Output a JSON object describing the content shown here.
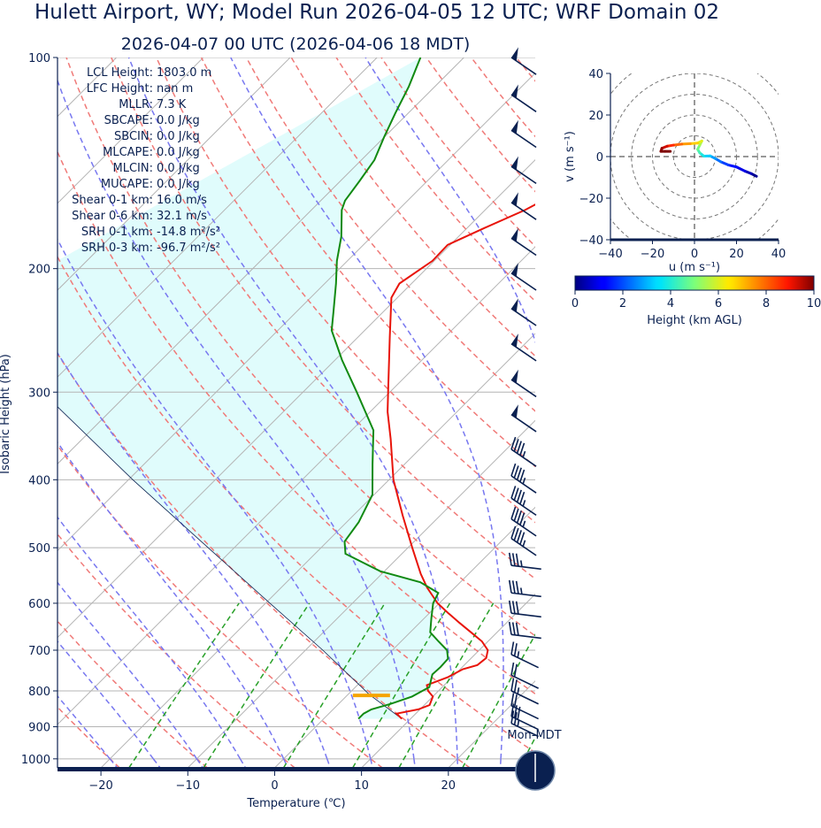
{
  "title": "Hulett Airport, WY; Model Run 2026-04-05 12 UTC; WRF Domain 02",
  "subtitle": "2026-04-07 00 UTC  (2026-04-06 18 MDT)",
  "stats": [
    {
      "label": "LCL Height:",
      "value": "1803.0 m"
    },
    {
      "label": "LFC Height:",
      "value": "nan m"
    },
    {
      "label": "MLLR:",
      "value": "7.3 K"
    },
    {
      "label": "SBCAPE:",
      "value": "0.0 J/kg"
    },
    {
      "label": "SBCIN:",
      "value": "0.0 J/kg"
    },
    {
      "label": "MLCAPE:",
      "value": "0.0 J/kg"
    },
    {
      "label": "MLCIN:",
      "value": "0.0 J/kg"
    },
    {
      "label": "MUCAPE:",
      "value": "0.0 J/kg"
    },
    {
      "label": "Shear 0-1 km:",
      "value": "16.0 m/s"
    },
    {
      "label": "Shear 0-6 km:",
      "value": "32.1 m/s"
    },
    {
      "label": "SRH 0-1 km:",
      "value": "-14.8 m²/s²"
    },
    {
      "label": "SRH 0-3 km:",
      "value": "-96.7 m²/s²"
    }
  ],
  "clock_label": "Mon-MDT",
  "colors": {
    "temperature": "#e8140a",
    "dewpoint": "#128a12",
    "dry_adiabat": "#f07a78",
    "moist_adiabat": "#7878f0",
    "mixing_ratio": "#28a028",
    "parcel_fill": "#e0fcfc",
    "lcl_marker": "#f5a400",
    "frame": "#0a2050"
  },
  "chart_data": [
    {
      "type": "line",
      "kind": "skew-t log-p",
      "xlabel": "Temperature (℃)",
      "ylabel": "Isobaric Height (hPa)",
      "xlim": [
        -25,
        30
      ],
      "ylim": [
        1030,
        100
      ],
      "x_ticks": [
        -20,
        -10,
        0,
        10,
        20
      ],
      "y_ticks": [
        100,
        200,
        300,
        400,
        500,
        600,
        700,
        800,
        900,
        1000
      ],
      "grid": true,
      "series": [
        {
          "role": "temperature",
          "points": [
            [
              877,
              9.0
            ],
            [
              862,
              7.8
            ],
            [
              850,
              9.8
            ],
            [
              838,
              10.6
            ],
            [
              815,
              10.0
            ],
            [
              800,
              8.8
            ],
            [
              785,
              8.0
            ],
            [
              765,
              9.5
            ],
            [
              745,
              10.3
            ],
            [
              735,
              11.5
            ],
            [
              718,
              11.7
            ],
            [
              700,
              11.0
            ],
            [
              680,
              9.3
            ],
            [
              660,
              7.0
            ],
            [
              640,
              4.6
            ],
            [
              620,
              2.2
            ],
            [
              600,
              -0.2
            ],
            [
              570,
              -3.2
            ],
            [
              545,
              -5.5
            ],
            [
              500,
              -9.5
            ],
            [
              450,
              -14.3
            ],
            [
              400,
              -19.5
            ],
            [
              350,
              -24.5
            ],
            [
              320,
              -28.0
            ],
            [
              300,
              -30.2
            ],
            [
              250,
              -36.4
            ],
            [
              220,
              -40.7
            ],
            [
              210,
              -41.4
            ],
            [
              195,
              -40.2
            ],
            [
              185,
              -40.3
            ],
            [
              175,
              -38.0
            ],
            [
              165,
              -35.4
            ],
            [
              150,
              -32.5
            ],
            [
              130,
              -30.5
            ],
            [
              115,
              -28.0
            ],
            [
              100,
              -24.5
            ]
          ]
        },
        {
          "role": "dewpoint",
          "points": [
            [
              877,
              4.0
            ],
            [
              862,
              4.0
            ],
            [
              850,
              4.4
            ],
            [
              835,
              6.0
            ],
            [
              815,
              7.6
            ],
            [
              790,
              8.5
            ],
            [
              775,
              8.0
            ],
            [
              758,
              7.4
            ],
            [
              740,
              7.5
            ],
            [
              720,
              7.4
            ],
            [
              700,
              6.3
            ],
            [
              680,
              4.3
            ],
            [
              660,
              2.3
            ],
            [
              630,
              0.8
            ],
            [
              600,
              -0.7
            ],
            [
              580,
              -1.3
            ],
            [
              560,
              -4.6
            ],
            [
              540,
              -10.5
            ],
            [
              510,
              -16.5
            ],
            [
              490,
              -18.0
            ],
            [
              460,
              -18.6
            ],
            [
              420,
              -20.2
            ],
            [
              380,
              -23.7
            ],
            [
              340,
              -27.5
            ],
            [
              300,
              -33.8
            ],
            [
              270,
              -39.2
            ],
            [
              245,
              -43.8
            ],
            [
              230,
              -45.8
            ],
            [
              210,
              -48.7
            ],
            [
              195,
              -51.2
            ],
            [
              180,
              -53.5
            ],
            [
              165,
              -56.5
            ],
            [
              160,
              -57.2
            ],
            [
              150,
              -57.8
            ],
            [
              140,
              -58.5
            ],
            [
              130,
              -60.0
            ],
            [
              120,
              -61.5
            ],
            [
              110,
              -63.0
            ],
            [
              100,
              -65.0
            ]
          ]
        },
        {
          "role": "parcel",
          "points": [
            [
              877,
              9.0
            ],
            [
              810,
              2.5
            ],
            [
              700,
              -8.0
            ],
            [
              600,
              -19.5
            ],
            [
              500,
              -33.0
            ],
            [
              400,
              -49.5
            ],
            [
              300,
              -70.0
            ],
            [
              230,
              -88.0
            ]
          ]
        }
      ],
      "lcl_pressure_hpa": 812,
      "wind_barbs": [
        {
          "p": 100,
          "speed_kt": 50
        },
        {
          "p": 113,
          "speed_kt": 50
        },
        {
          "p": 127,
          "speed_kt": 50
        },
        {
          "p": 143,
          "speed_kt": 50
        },
        {
          "p": 161,
          "speed_kt": 50
        },
        {
          "p": 181,
          "speed_kt": 50
        },
        {
          "p": 203,
          "speed_kt": 50
        },
        {
          "p": 228,
          "speed_kt": 50
        },
        {
          "p": 256,
          "speed_kt": 50
        },
        {
          "p": 288,
          "speed_kt": 50
        },
        {
          "p": 323,
          "speed_kt": 50
        },
        {
          "p": 362,
          "speed_kt": 45
        },
        {
          "p": 395,
          "speed_kt": 45
        },
        {
          "p": 425,
          "speed_kt": 45
        },
        {
          "p": 455,
          "speed_kt": 45
        },
        {
          "p": 485,
          "speed_kt": 45
        },
        {
          "p": 530,
          "speed_kt": 35
        },
        {
          "p": 580,
          "speed_kt": 35
        },
        {
          "p": 620,
          "speed_kt": 30
        },
        {
          "p": 665,
          "speed_kt": 30
        },
        {
          "p": 710,
          "speed_kt": 25
        },
        {
          "p": 760,
          "speed_kt": 20
        },
        {
          "p": 800,
          "speed_kt": 25
        },
        {
          "p": 840,
          "speed_kt": 20
        },
        {
          "p": 870,
          "speed_kt": 30
        },
        {
          "p": 890,
          "speed_kt": 25
        }
      ]
    },
    {
      "type": "line",
      "kind": "hodograph",
      "xlabel": "u (m s⁻¹)",
      "ylabel": "v (m s⁻¹)",
      "xlim": [
        -40,
        40
      ],
      "ylim": [
        -40,
        40
      ],
      "x_ticks": [
        -40,
        -20,
        0,
        20,
        40
      ],
      "y_ticks": [
        -40,
        -20,
        0,
        20,
        40
      ],
      "ring_spacing": 10,
      "colorbar": {
        "label": "Height (km AGL)",
        "ticks": [
          0,
          2,
          4,
          6,
          8,
          10
        ],
        "range": [
          0,
          10
        ]
      },
      "points": [
        {
          "u": 29.5,
          "v": -9.5,
          "h": 0.0
        },
        {
          "u": 27.0,
          "v": -8.2,
          "h": 0.3
        },
        {
          "u": 24.0,
          "v": -7.0,
          "h": 0.7
        },
        {
          "u": 20.0,
          "v": -5.0,
          "h": 1.1
        },
        {
          "u": 16.0,
          "v": -4.0,
          "h": 1.5
        },
        {
          "u": 12.5,
          "v": -2.5,
          "h": 2.0
        },
        {
          "u": 10.0,
          "v": -1.0,
          "h": 2.5
        },
        {
          "u": 7.5,
          "v": 0.3,
          "h": 3.0
        },
        {
          "u": 4.5,
          "v": 0.2,
          "h": 3.5
        },
        {
          "u": 2.5,
          "v": 1.8,
          "h": 4.0
        },
        {
          "u": 1.5,
          "v": 3.5,
          "h": 4.6
        },
        {
          "u": 2.5,
          "v": 5.5,
          "h": 5.2
        },
        {
          "u": 3.5,
          "v": 7.5,
          "h": 5.8
        },
        {
          "u": 1.5,
          "v": 6.5,
          "h": 6.4
        },
        {
          "u": -2.0,
          "v": 6.2,
          "h": 7.0
        },
        {
          "u": -6.0,
          "v": 6.0,
          "h": 7.6
        },
        {
          "u": -10.0,
          "v": 5.5,
          "h": 8.3
        },
        {
          "u": -13.0,
          "v": 5.0,
          "h": 9.0
        },
        {
          "u": -15.5,
          "v": 4.0,
          "h": 9.6
        },
        {
          "u": -16.0,
          "v": 2.5,
          "h": 10.0
        },
        {
          "u": -14.0,
          "v": 2.5,
          "h": 10.4
        },
        {
          "u": -11.5,
          "v": 2.5,
          "h": 10.8
        }
      ]
    }
  ]
}
